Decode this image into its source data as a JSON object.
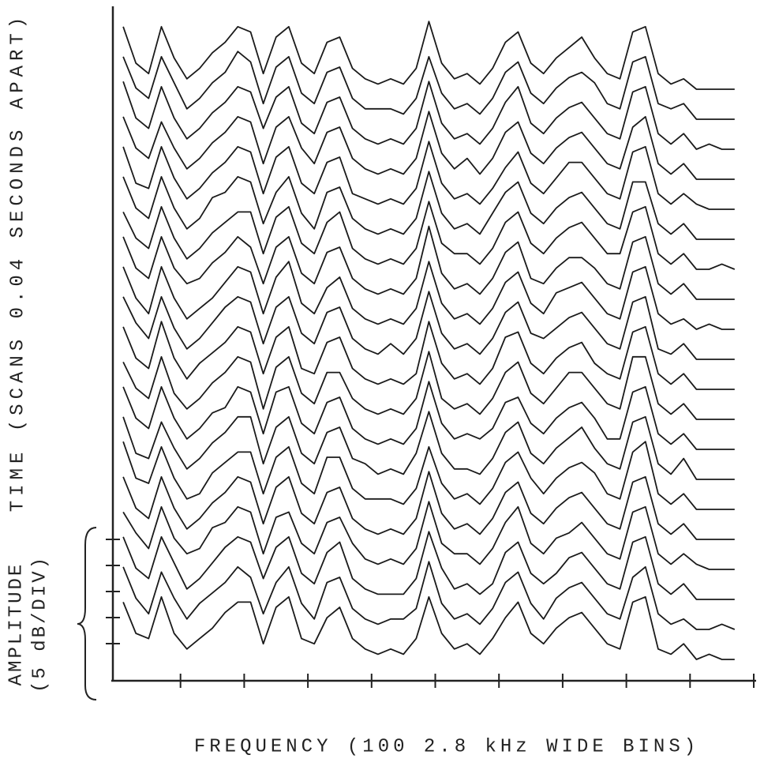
{
  "chart_data": {
    "type": "waterfall",
    "x_label": "FREQUENCY (100 2.8 kHz WIDE BINS)",
    "y_label": "TIME (SCANS 0.04 SECONDS APART)",
    "amplitude_label": [
      "AMPLITUDE",
      "(5 dB/DIV)"
    ],
    "color": "#1a1a1a",
    "xlim": [
      0,
      100
    ],
    "xticks": [
      10,
      20,
      30,
      40,
      50,
      60,
      70,
      80,
      90,
      100
    ],
    "yticks": [
      0,
      5,
      10,
      15,
      20
    ],
    "x": [
      1,
      3,
      5,
      7,
      9,
      11,
      13,
      15,
      17,
      19,
      21,
      23,
      25,
      27,
      29,
      31,
      33,
      35,
      37,
      39,
      41,
      43,
      45,
      47,
      49,
      51,
      53,
      55,
      57,
      59,
      61,
      63,
      65,
      67,
      69,
      71,
      73,
      75,
      77,
      79,
      81,
      83,
      85,
      87,
      89,
      91,
      93,
      95,
      97
    ],
    "series": [
      {
        "values": [
          11,
          5,
          4,
          12,
          5,
          2,
          4,
          6,
          9,
          11,
          11,
          3,
          10,
          12,
          4,
          3,
          8,
          10,
          4,
          2,
          1,
          2,
          1,
          4,
          12,
          5,
          2,
          3,
          1,
          4,
          8,
          11,
          5,
          3,
          6,
          8,
          9,
          6,
          3,
          2,
          11,
          12,
          2,
          1,
          3,
          0,
          1,
          0,
          0
        ]
      },
      {
        "values": [
          12,
          6,
          3,
          11,
          6,
          2,
          5,
          7,
          9,
          12,
          10,
          3,
          9,
          12,
          5,
          2,
          9,
          10,
          4,
          2,
          1,
          2,
          2,
          4,
          13,
          5,
          2,
          3,
          1,
          4,
          9,
          11,
          5,
          2,
          6,
          8,
          9,
          6,
          3,
          2,
          10,
          12,
          3,
          1,
          2,
          0,
          0,
          1,
          0
        ]
      },
      {
        "values": [
          12,
          6,
          4,
          12,
          7,
          2,
          4,
          7,
          10,
          12,
          11,
          4,
          10,
          12,
          5,
          3,
          9,
          11,
          4,
          2,
          1,
          1,
          1,
          4,
          13,
          6,
          2,
          3,
          1,
          3,
          9,
          11,
          5,
          3,
          5,
          8,
          9,
          6,
          3,
          2,
          11,
          12,
          3,
          1,
          3,
          0,
          0,
          0,
          0
        ]
      },
      {
        "values": [
          11,
          7,
          4,
          12,
          6,
          3,
          4,
          8,
          9,
          12,
          11,
          3,
          10,
          11,
          5,
          3,
          9,
          10,
          5,
          2,
          1,
          2,
          1,
          4,
          13,
          5,
          3,
          3,
          1,
          4,
          9,
          12,
          5,
          3,
          6,
          7,
          9,
          6,
          3,
          2,
          11,
          12,
          3,
          1,
          3,
          1,
          0,
          0,
          0
        ]
      },
      {
        "values": [
          12,
          6,
          4,
          12,
          6,
          2,
          4,
          7,
          9,
          12,
          11,
          3,
          10,
          12,
          5,
          3,
          9,
          10,
          4,
          2,
          1,
          2,
          1,
          4,
          13,
          5,
          2,
          3,
          1,
          4,
          9,
          11,
          5,
          3,
          6,
          8,
          9,
          6,
          3,
          2,
          11,
          12,
          3,
          1,
          3,
          0,
          0,
          0,
          0
        ]
      },
      {
        "values": [
          13,
          6,
          5,
          12,
          6,
          2,
          3,
          7,
          9,
          11,
          11,
          3,
          10,
          12,
          5,
          3,
          10,
          10,
          4,
          2,
          2,
          2,
          1,
          4,
          12,
          5,
          2,
          3,
          1,
          4,
          9,
          11,
          6,
          3,
          6,
          8,
          9,
          7,
          3,
          2,
          11,
          13,
          3,
          1,
          3,
          0,
          0,
          0,
          0
        ]
      },
      {
        "values": [
          12,
          5,
          4,
          11,
          6,
          2,
          4,
          7,
          9,
          12,
          12,
          3,
          10,
          12,
          5,
          3,
          9,
          10,
          4,
          3,
          1,
          2,
          1,
          5,
          13,
          5,
          2,
          2,
          1,
          4,
          9,
          11,
          5,
          3,
          6,
          8,
          10,
          6,
          3,
          2,
          11,
          12,
          3,
          1,
          4,
          0,
          0,
          0,
          0
        ]
      },
      {
        "values": [
          12,
          6,
          4,
          12,
          6,
          2,
          4,
          7,
          8,
          12,
          11,
          3,
          11,
          12,
          5,
          3,
          9,
          10,
          4,
          2,
          1,
          2,
          1,
          4,
          13,
          5,
          2,
          3,
          2,
          4,
          9,
          10,
          5,
          3,
          6,
          8,
          9,
          6,
          2,
          2,
          11,
          12,
          3,
          1,
          3,
          0,
          0,
          0,
          0
        ]
      },
      {
        "values": [
          11,
          6,
          4,
          12,
          5,
          2,
          4,
          7,
          9,
          12,
          11,
          2,
          10,
          12,
          5,
          3,
          9,
          9,
          4,
          2,
          1,
          2,
          1,
          4,
          13,
          4,
          2,
          3,
          1,
          4,
          9,
          11,
          5,
          3,
          6,
          9,
          9,
          6,
          3,
          2,
          12,
          12,
          3,
          1,
          3,
          0,
          0,
          0,
          0
        ]
      },
      {
        "values": [
          12,
          6,
          4,
          13,
          6,
          2,
          5,
          7,
          9,
          12,
          11,
          3,
          10,
          12,
          4,
          3,
          9,
          10,
          4,
          2,
          1,
          2,
          1,
          3,
          13,
          5,
          2,
          3,
          1,
          4,
          10,
          11,
          5,
          3,
          6,
          8,
          9,
          5,
          3,
          2,
          11,
          12,
          3,
          1,
          3,
          0,
          0,
          0,
          0
        ]
      },
      {
        "values": [
          12,
          7,
          4,
          12,
          6,
          2,
          4,
          7,
          10,
          12,
          11,
          3,
          10,
          12,
          5,
          3,
          9,
          10,
          4,
          2,
          1,
          3,
          1,
          4,
          13,
          5,
          2,
          3,
          1,
          4,
          9,
          11,
          5,
          4,
          6,
          8,
          9,
          6,
          3,
          2,
          11,
          12,
          2,
          1,
          3,
          0,
          0,
          0,
          0
        ]
      },
      {
        "values": [
          12,
          6,
          3,
          12,
          6,
          2,
          4,
          6,
          9,
          12,
          11,
          3,
          10,
          13,
          5,
          3,
          8,
          10,
          4,
          2,
          1,
          2,
          1,
          4,
          13,
          5,
          2,
          3,
          1,
          4,
          9,
          11,
          5,
          3,
          7,
          8,
          9,
          6,
          3,
          2,
          11,
          12,
          3,
          1,
          2,
          0,
          1,
          0,
          0
        ]
      },
      {
        "values": [
          12,
          6,
          4,
          12,
          6,
          3,
          4,
          7,
          9,
          12,
          10,
          3,
          10,
          12,
          5,
          3,
          9,
          10,
          4,
          2,
          1,
          2,
          1,
          4,
          14,
          5,
          2,
          3,
          1,
          4,
          9,
          11,
          4,
          3,
          6,
          8,
          8,
          6,
          3,
          2,
          11,
          12,
          3,
          1,
          3,
          0,
          0,
          0,
          0
        ]
      },
      {
        "values": [
          11,
          6,
          4,
          12,
          6,
          2,
          4,
          7,
          9,
          11,
          11,
          3,
          10,
          12,
          5,
          3,
          9,
          11,
          4,
          2,
          1,
          2,
          1,
          4,
          13,
          5,
          3,
          3,
          1,
          4,
          9,
          11,
          5,
          3,
          6,
          8,
          9,
          6,
          3,
          3,
          11,
          12,
          3,
          1,
          3,
          0,
          0,
          1,
          0
        ]
      },
      {
        "values": [
          12,
          6,
          4,
          12,
          6,
          2,
          4,
          8,
          9,
          12,
          11,
          3,
          9,
          12,
          5,
          2,
          9,
          10,
          4,
          2,
          1,
          2,
          1,
          4,
          13,
          5,
          2,
          3,
          1,
          5,
          9,
          11,
          5,
          3,
          6,
          8,
          9,
          6,
          3,
          2,
          11,
          11,
          3,
          1,
          3,
          0,
          0,
          0,
          0
        ]
      },
      {
        "values": [
          12,
          5,
          4,
          12,
          6,
          2,
          4,
          7,
          9,
          12,
          11,
          3,
          10,
          12,
          5,
          3,
          9,
          10,
          3,
          2,
          1,
          2,
          1,
          4,
          13,
          5,
          2,
          3,
          1,
          4,
          8,
          11,
          5,
          3,
          6,
          9,
          9,
          6,
          3,
          2,
          11,
          12,
          3,
          1,
          3,
          1,
          0,
          0,
          0
        ]
      },
      {
        "values": [
          12,
          6,
          4,
          11,
          6,
          2,
          4,
          7,
          9,
          12,
          11,
          3,
          10,
          12,
          6,
          3,
          9,
          10,
          4,
          2,
          1,
          2,
          1,
          4,
          13,
          5,
          2,
          4,
          1,
          4,
          9,
          11,
          5,
          3,
          6,
          8,
          9,
          6,
          3,
          2,
          10,
          12,
          3,
          1,
          3,
          0,
          0,
          0,
          0
        ]
      },
      {
        "values": [
          13,
          6,
          4,
          12,
          6,
          2,
          4,
          7,
          9,
          12,
          11,
          4,
          10,
          12,
          5,
          3,
          9,
          10,
          4,
          2,
          1,
          2,
          1,
          4,
          13,
          5,
          2,
          3,
          1,
          4,
          9,
          12,
          5,
          3,
          6,
          8,
          9,
          6,
          3,
          2,
          11,
          12,
          3,
          1,
          3,
          0,
          1,
          0,
          0
        ]
      },
      {
        "values": [
          12,
          6,
          4,
          12,
          7,
          2,
          4,
          7,
          9,
          13,
          11,
          3,
          10,
          12,
          5,
          3,
          9,
          10,
          4,
          2,
          2,
          2,
          1,
          4,
          12,
          5,
          2,
          3,
          1,
          4,
          9,
          11,
          5,
          3,
          6,
          8,
          9,
          7,
          3,
          2,
          11,
          12,
          3,
          2,
          3,
          0,
          0,
          0,
          0
        ]
      },
      {
        "values": [
          12,
          5,
          3,
          12,
          6,
          2,
          4,
          7,
          9,
          12,
          11,
          3,
          10,
          12,
          5,
          3,
          9,
          10,
          4,
          2,
          1,
          2,
          1,
          4,
          13,
          5,
          2,
          3,
          1,
          4,
          9,
          11,
          5,
          3,
          6,
          8,
          10,
          6,
          3,
          2,
          11,
          12,
          3,
          1,
          2,
          0,
          0,
          0,
          0
        ]
      }
    ]
  }
}
